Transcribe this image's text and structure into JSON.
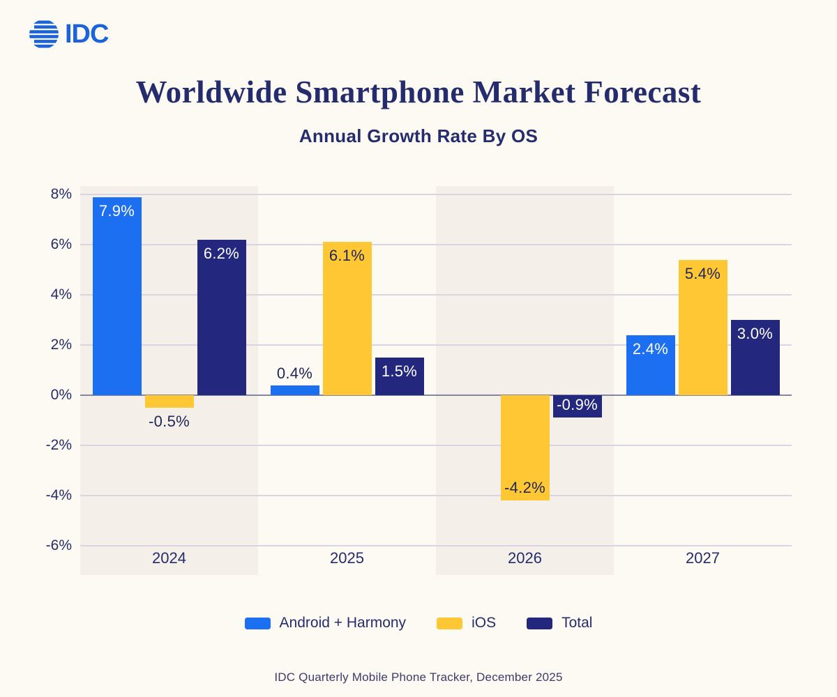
{
  "logo": {
    "text": "IDC",
    "color": "#1B63DB"
  },
  "header": {
    "title": "Worldwide Smartphone Market Forecast",
    "subtitle": "Annual Growth Rate By OS"
  },
  "footer": {
    "source": "IDC Quarterly Mobile Phone Tracker, December 2025"
  },
  "colors": {
    "background": "#FDFAF4",
    "highlight_band": "#F4EFE9",
    "gridline": "#D9D4E2",
    "zero_line": "#85859E",
    "navy_text": "#252C6E",
    "android_blue": "#1B6FF0",
    "ios_yellow": "#FFC734",
    "total_navy": "#23277D"
  },
  "chart_data": {
    "type": "bar",
    "title": "Worldwide Smartphone Market Forecast",
    "subtitle": "Annual Growth Rate By OS",
    "categories": [
      "2024",
      "2025",
      "2026",
      "2027"
    ],
    "unit": "%",
    "ylim": [
      -7,
      8.5
    ],
    "grid": true,
    "legend_position": "bottom",
    "highlight_band_columns": [
      0,
      2
    ],
    "y_ticks": [
      {
        "value": 8,
        "label": "8%"
      },
      {
        "value": 6,
        "label": "6%"
      },
      {
        "value": 4,
        "label": "4%"
      },
      {
        "value": 2,
        "label": "2%"
      },
      {
        "value": 0,
        "label": "0%"
      },
      {
        "value": -2,
        "label": "-2%"
      },
      {
        "value": -4,
        "label": "-4%"
      },
      {
        "value": -6,
        "label": "-6%"
      }
    ],
    "series": [
      {
        "name": "Android + Harmony",
        "color": "#1B6FF0",
        "values": [
          7.9,
          0.4,
          null,
          2.4
        ],
        "labels": [
          "7.9%",
          "0.4%",
          null,
          "2.4%"
        ],
        "label_placements": [
          "inside-top",
          "above",
          null,
          "inside-top"
        ],
        "label_colors": [
          "light",
          "dark",
          null,
          "light"
        ]
      },
      {
        "name": "iOS",
        "color": "#FFC734",
        "values": [
          -0.5,
          6.1,
          -4.2,
          5.4
        ],
        "labels": [
          "-0.5%",
          "6.1%",
          "-4.2%",
          "5.4%"
        ],
        "label_placements": [
          "below",
          "inside-top",
          "inside-bottom",
          "inside-top"
        ],
        "label_colors": [
          "dark",
          "dark",
          "dark",
          "dark"
        ]
      },
      {
        "name": "Total",
        "color": "#23277D",
        "values": [
          6.2,
          1.5,
          -0.9,
          3.0
        ],
        "labels": [
          "6.2%",
          "1.5%",
          "-0.9%",
          "3.0%"
        ],
        "label_placements": [
          "inside-top",
          "inside-top",
          "inside-bottom",
          "inside-top"
        ],
        "label_colors": [
          "light",
          "light",
          "light",
          "light"
        ]
      }
    ],
    "source_note": "IDC Quarterly Mobile Phone Tracker, December 2025"
  }
}
